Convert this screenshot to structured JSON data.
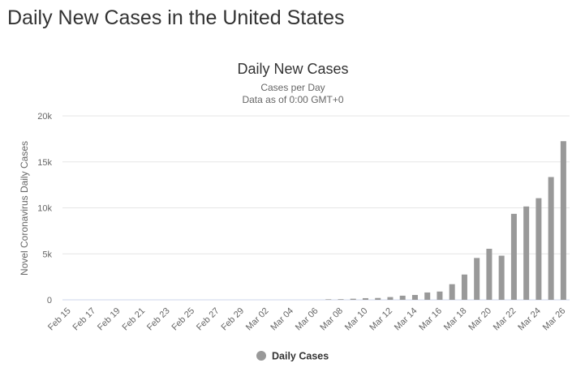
{
  "page": {
    "title": "Daily New Cases in the United States"
  },
  "chart_data": {
    "type": "bar",
    "title": "Daily New Cases",
    "subtitle": [
      "Cases per Day",
      "Data as of 0:00 GMT+0"
    ],
    "xlabel": "",
    "ylabel": "Novel Coronavirus Daily Cases",
    "ylim": [
      0,
      20000
    ],
    "yticks": [
      0,
      5000,
      10000,
      15000,
      20000
    ],
    "ytick_labels": [
      "0",
      "5k",
      "10k",
      "15k",
      "20k"
    ],
    "grid": true,
    "legend": {
      "position": "bottom",
      "entries": [
        "Daily Cases"
      ]
    },
    "bar_color": "#999999",
    "categories": [
      "Feb 15",
      "Feb 16",
      "Feb 17",
      "Feb 18",
      "Feb 19",
      "Feb 20",
      "Feb 21",
      "Feb 22",
      "Feb 23",
      "Feb 24",
      "Feb 25",
      "Feb 26",
      "Feb 27",
      "Feb 28",
      "Feb 29",
      "Mar 01",
      "Mar 02",
      "Mar 03",
      "Mar 04",
      "Mar 05",
      "Mar 06",
      "Mar 07",
      "Mar 08",
      "Mar 09",
      "Mar 10",
      "Mar 11",
      "Mar 12",
      "Mar 13",
      "Mar 14",
      "Mar 15",
      "Mar 16",
      "Mar 17",
      "Mar 18",
      "Mar 19",
      "Mar 20",
      "Mar 21",
      "Mar 22",
      "Mar 23",
      "Mar 24",
      "Mar 25",
      "Mar 26"
    ],
    "xtick_labels": [
      "Feb 15",
      "Feb 17",
      "Feb 19",
      "Feb 21",
      "Feb 23",
      "Feb 25",
      "Feb 27",
      "Feb 29",
      "Mar 02",
      "Mar 04",
      "Mar 06",
      "Mar 08",
      "Mar 10",
      "Mar 12",
      "Mar 14",
      "Mar 16",
      "Mar 18",
      "Mar 20",
      "Mar 22",
      "Mar 24",
      "Mar 26"
    ],
    "series": [
      {
        "name": "Daily Cases",
        "values": [
          0,
          0,
          0,
          0,
          0,
          0,
          0,
          0,
          0,
          0,
          0,
          0,
          0,
          0,
          0,
          0,
          0,
          0,
          0,
          0,
          0,
          60,
          70,
          120,
          180,
          200,
          300,
          450,
          530,
          800,
          900,
          1700,
          2750,
          4550,
          5550,
          4800,
          9350,
          10150,
          11050,
          13350,
          17250
        ]
      }
    ]
  }
}
